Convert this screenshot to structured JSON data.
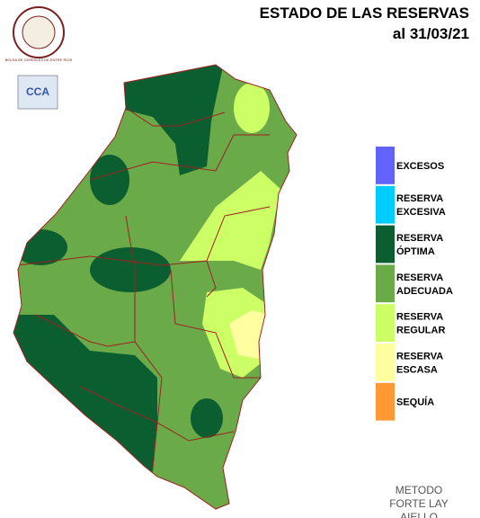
{
  "header": {
    "title": "ESTADO DE LAS RESERVAS",
    "date": "al 31/03/21"
  },
  "logo": {
    "ring": "BOLSA DE CEREALES DE ENTRE RIOS",
    "badge": "CCA"
  },
  "legend": {
    "items": [
      {
        "lines": [
          "EXCESOS"
        ],
        "color": "#6262ff"
      },
      {
        "lines": [
          "RESERVA",
          "EXCESIVA"
        ],
        "color": "#00ccff"
      },
      {
        "lines": [
          "RESERVA",
          "ÓPTIMA"
        ],
        "color": "#0b5e30"
      },
      {
        "lines": [
          "RESERVA",
          "ADECUADA"
        ],
        "color": "#6aaa48"
      },
      {
        "lines": [
          "RESERVA",
          "REGULAR"
        ],
        "color": "#ccff66"
      },
      {
        "lines": [
          "RESERVA",
          "ESCASA"
        ],
        "color": "#ffffa0"
      },
      {
        "lines": [
          "SEQUÍA"
        ],
        "color": "#ff9933"
      }
    ]
  },
  "method": {
    "lines": [
      "METODO",
      "FORTE LAY",
      "AIELLO"
    ]
  }
}
